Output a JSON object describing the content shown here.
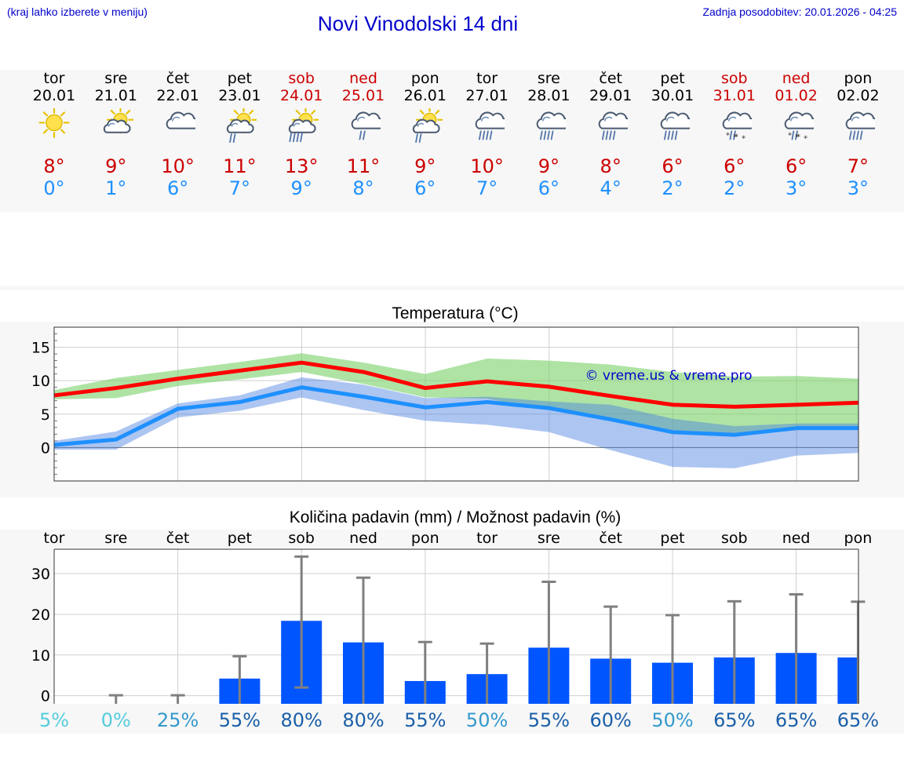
{
  "header": {
    "hint": "(kraj lahko izberete v meniju)",
    "title": "Novi Vinodolski 14 dni",
    "updated": "Zadnja posodobitev: 20.01.2026 - 04:25"
  },
  "colors": {
    "max": "#ff0000",
    "min": "#1e90ff",
    "bar": "#0055ff",
    "weekend": "#cc0000",
    "link": "#0000cc"
  },
  "days": [
    {
      "name": "tor",
      "date": "20.01",
      "weekend": false,
      "icon": "sun-icon",
      "max": "8°",
      "min": "0°"
    },
    {
      "name": "sre",
      "date": "21.01",
      "weekend": false,
      "icon": "sun-cloud-icon",
      "max": "9°",
      "min": "1°"
    },
    {
      "name": "čet",
      "date": "22.01",
      "weekend": false,
      "icon": "cloud-icon",
      "max": "10°",
      "min": "6°"
    },
    {
      "name": "pet",
      "date": "23.01",
      "weekend": false,
      "icon": "sun-cloud-rain-icon",
      "max": "11°",
      "min": "7°"
    },
    {
      "name": "sob",
      "date": "24.01",
      "weekend": true,
      "icon": "sun-cloud-heavy-rain-icon",
      "max": "13°",
      "min": "9°"
    },
    {
      "name": "ned",
      "date": "25.01",
      "weekend": true,
      "icon": "cloud-rain-icon",
      "max": "11°",
      "min": "8°"
    },
    {
      "name": "pon",
      "date": "26.01",
      "weekend": false,
      "icon": "sun-cloud-rain-icon",
      "max": "9°",
      "min": "6°"
    },
    {
      "name": "tor",
      "date": "27.01",
      "weekend": false,
      "icon": "cloud-heavy-rain-icon",
      "max": "10°",
      "min": "7°"
    },
    {
      "name": "sre",
      "date": "28.01",
      "weekend": false,
      "icon": "cloud-heavy-rain-icon",
      "max": "9°",
      "min": "6°"
    },
    {
      "name": "čet",
      "date": "29.01",
      "weekend": false,
      "icon": "cloud-heavy-rain-icon",
      "max": "8°",
      "min": "4°"
    },
    {
      "name": "pet",
      "date": "30.01",
      "weekend": false,
      "icon": "cloud-heavy-rain-icon",
      "max": "6°",
      "min": "2°"
    },
    {
      "name": "sob",
      "date": "31.01",
      "weekend": true,
      "icon": "cloud-sleet-icon",
      "max": "6°",
      "min": "2°"
    },
    {
      "name": "ned",
      "date": "01.02",
      "weekend": true,
      "icon": "cloud-sleet-icon",
      "max": "6°",
      "min": "3°"
    },
    {
      "name": "pon",
      "date": "02.02",
      "weekend": false,
      "icon": "cloud-heavy-rain-icon",
      "max": "7°",
      "min": "3°"
    }
  ],
  "chart_data": [
    {
      "type": "line",
      "title": "Temperatura (°C)",
      "watermark": "© vreme.us & vreme.pro",
      "ylim": [
        -5,
        18
      ],
      "yticks": [
        0,
        5,
        10,
        15
      ],
      "x": [
        "20.01",
        "21.01",
        "22.01",
        "23.01",
        "24.01",
        "25.01",
        "26.01",
        "27.01",
        "28.01",
        "29.01",
        "30.01",
        "31.01",
        "01.02",
        "02.02"
      ],
      "series": [
        {
          "name": "max",
          "values": [
            7.8,
            8.9,
            10.3,
            11.5,
            12.7,
            11.3,
            8.9,
            9.9,
            9.1,
            7.7,
            6.4,
            6.1,
            6.4,
            6.7
          ],
          "range_low": [
            7.2,
            7.4,
            9.2,
            10.2,
            11.3,
            9.5,
            7.5,
            7.3,
            5.6,
            4.2,
            2.6,
            1.7,
            2.6,
            3.0
          ],
          "range_high": [
            8.6,
            10.4,
            11.6,
            12.8,
            14.1,
            12.7,
            11.0,
            13.3,
            13.0,
            12.4,
            11.3,
            10.6,
            10.7,
            10.3
          ]
        },
        {
          "name": "min",
          "values": [
            0.4,
            1.2,
            5.8,
            6.8,
            9.0,
            7.6,
            6.0,
            6.8,
            5.9,
            4.2,
            2.3,
            1.9,
            2.9,
            2.9
          ],
          "range_low": [
            -0.3,
            -0.3,
            4.5,
            5.5,
            7.5,
            5.6,
            4.0,
            3.4,
            2.3,
            -0.4,
            -2.9,
            -3.1,
            -1.2,
            -0.8
          ],
          "range_high": [
            1.0,
            2.4,
            6.6,
            7.8,
            10.5,
            9.4,
            7.4,
            7.6,
            6.9,
            6.4,
            4.3,
            3.2,
            3.6,
            3.6
          ]
        }
      ]
    },
    {
      "type": "bar",
      "title": "Količina padavin (mm) / Možnost padavin (%)",
      "ylim": [
        -2,
        36
      ],
      "yticks": [
        0,
        10,
        20,
        30
      ],
      "categories": [
        "tor",
        "sre",
        "čet",
        "pet",
        "sob",
        "ned",
        "pon",
        "tor",
        "sre",
        "čet",
        "pet",
        "sob",
        "ned",
        "pon"
      ],
      "values": [
        0,
        0,
        0,
        4.2,
        18.4,
        13.1,
        3.6,
        5.3,
        11.8,
        9.1,
        8.1,
        9.4,
        10.5,
        9.4
      ],
      "error_low": [
        0,
        0,
        0,
        0,
        2.0,
        0,
        0,
        0,
        0,
        0,
        0,
        0,
        0,
        0
      ],
      "error_high": [
        0,
        0.1,
        0.1,
        9.7,
        34.2,
        29.0,
        13.2,
        12.8,
        28.0,
        21.9,
        19.8,
        23.2,
        24.9,
        23.1
      ],
      "probability": [
        "5%",
        "0%",
        "25%",
        "55%",
        "80%",
        "80%",
        "55%",
        "50%",
        "55%",
        "60%",
        "50%",
        "65%",
        "65%",
        "65%"
      ],
      "probability_colors": [
        "#55ccdd",
        "#55ccdd",
        "#3399cc",
        "#1a5fa8",
        "#1a5fa8",
        "#1a5fa8",
        "#1a5fa8",
        "#3399cc",
        "#1a5fa8",
        "#1a5fa8",
        "#3399cc",
        "#1a5fa8",
        "#1a5fa8",
        "#1a5fa8"
      ]
    }
  ]
}
